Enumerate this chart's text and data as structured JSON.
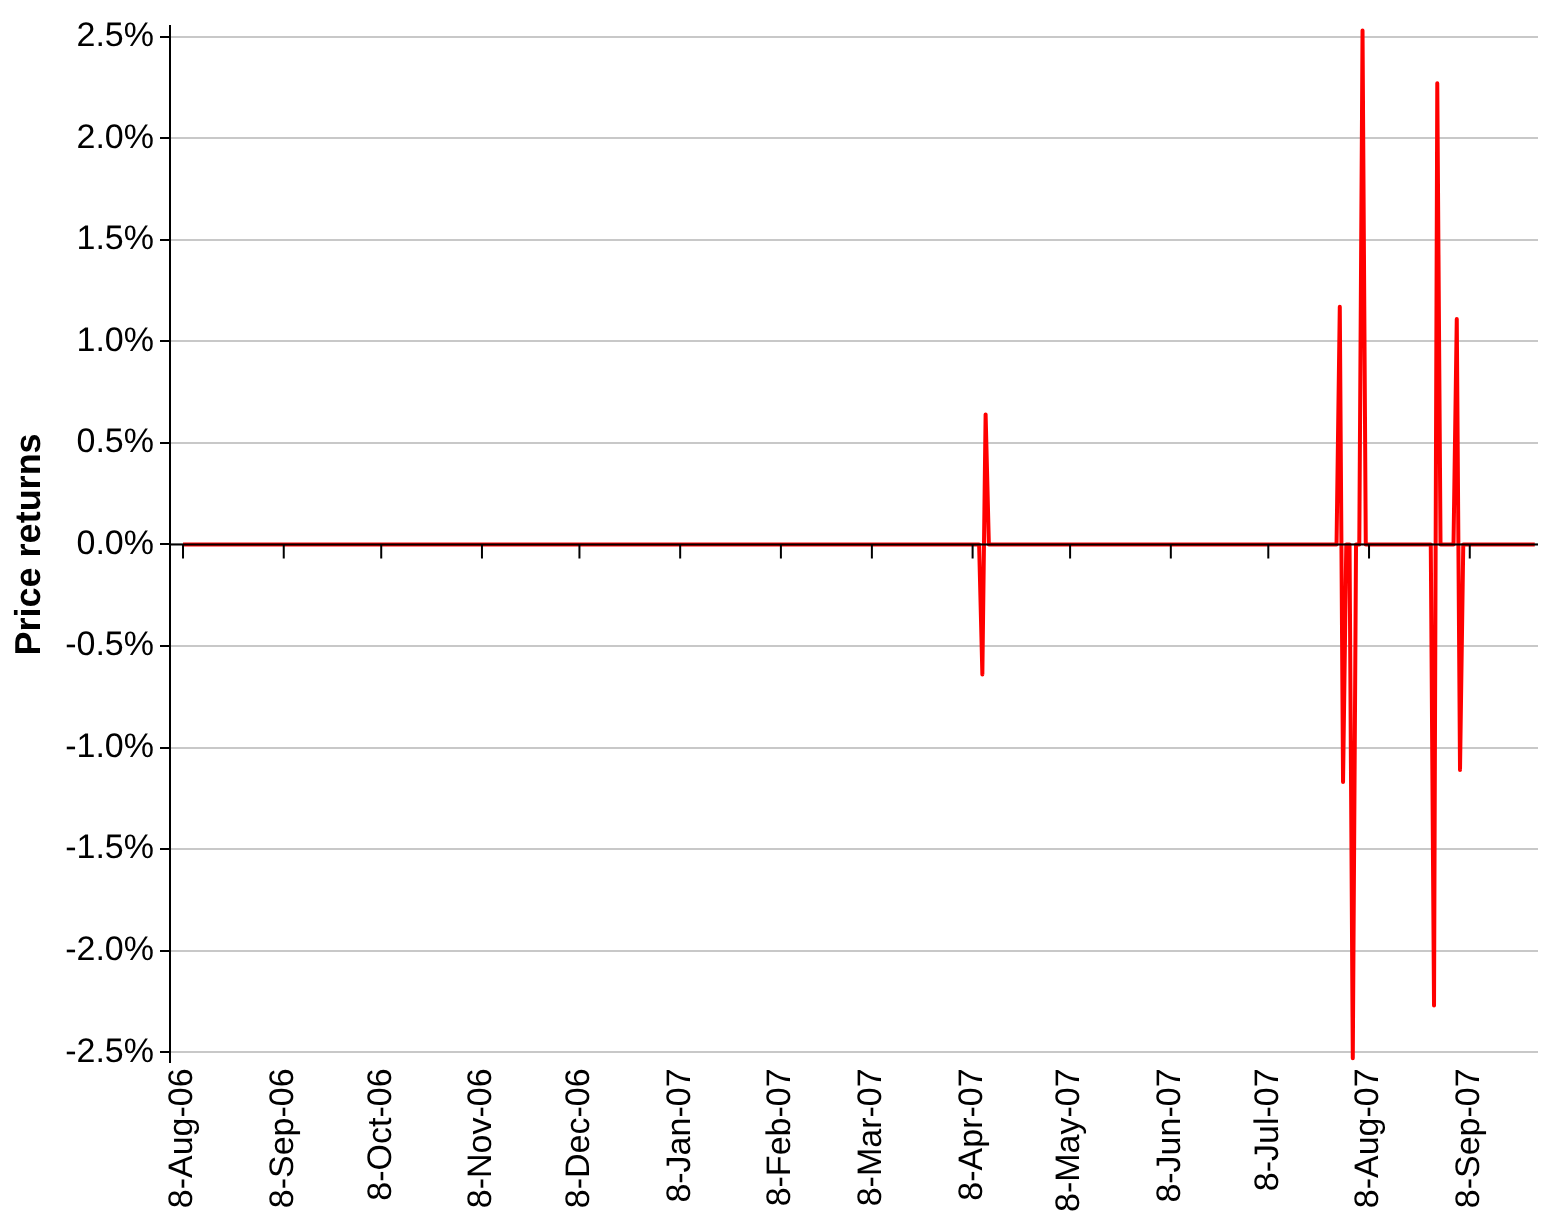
{
  "chart_data": {
    "type": "line",
    "ylabel": "Price returns",
    "series": [
      {
        "color": "#ff0000",
        "x": [
          "2006-08-08",
          "2007-04-10",
          "2007-04-11",
          "2007-04-12",
          "2007-04-13",
          "2007-07-29",
          "2007-07-30",
          "2007-07-31",
          "2007-08-01",
          "2007-08-02",
          "2007-08-03",
          "2007-08-04",
          "2007-08-05",
          "2007-08-06",
          "2007-08-07",
          "2007-08-27",
          "2007-08-28",
          "2007-08-29",
          "2007-08-30",
          "2007-09-03",
          "2007-09-04",
          "2007-09-05",
          "2007-09-06",
          "2007-09-28"
        ],
        "values": [
          0,
          0,
          -0.64,
          0.64,
          0,
          0,
          1.17,
          -1.17,
          0,
          0,
          -2.53,
          0,
          0,
          2.53,
          0,
          0,
          -2.27,
          2.27,
          0,
          0,
          1.11,
          -1.11,
          0,
          0
        ]
      }
    ],
    "xlim": [
      "2006-08-04",
      "2007-09-29"
    ],
    "xticks": [
      {
        "value": "2006-08-08",
        "label": "8-Aug-06"
      },
      {
        "value": "2006-09-08",
        "label": "8-Sep-06"
      },
      {
        "value": "2006-10-08",
        "label": "8-Oct-06"
      },
      {
        "value": "2006-11-08",
        "label": "8-Nov-06"
      },
      {
        "value": "2006-12-08",
        "label": "8-Dec-06"
      },
      {
        "value": "2007-01-08",
        "label": "8-Jan-07"
      },
      {
        "value": "2007-02-08",
        "label": "8-Feb-07"
      },
      {
        "value": "2007-03-08",
        "label": "8-Mar-07"
      },
      {
        "value": "2007-04-08",
        "label": "8-Apr-07"
      },
      {
        "value": "2007-05-08",
        "label": "8-May-07"
      },
      {
        "value": "2007-06-08",
        "label": "8-Jun-07"
      },
      {
        "value": "2007-07-08",
        "label": "8-Jul-07"
      },
      {
        "value": "2007-08-08",
        "label": "8-Aug-07"
      },
      {
        "value": "2007-09-08",
        "label": "8-Sep-07"
      }
    ],
    "ylim": [
      -2.55,
      2.55
    ],
    "yticks": [
      {
        "value": -2.5,
        "label": "-2.5%"
      },
      {
        "value": -2,
        "label": "-2.0%"
      },
      {
        "value": -1.5,
        "label": "-1.5%"
      },
      {
        "value": -1,
        "label": "-1.0%"
      },
      {
        "value": -0.5,
        "label": "-0.5%"
      },
      {
        "value": 0,
        "label": "0.0%"
      },
      {
        "value": 0.5,
        "label": "0.5%"
      },
      {
        "value": 1,
        "label": "1.0%"
      },
      {
        "value": 1.5,
        "label": "1.5%"
      },
      {
        "value": 2,
        "label": "2.0%"
      },
      {
        "value": 2.5,
        "label": "2.5%"
      }
    ],
    "grid": "y",
    "legend": false,
    "marker": "none",
    "line_style": "solid"
  }
}
